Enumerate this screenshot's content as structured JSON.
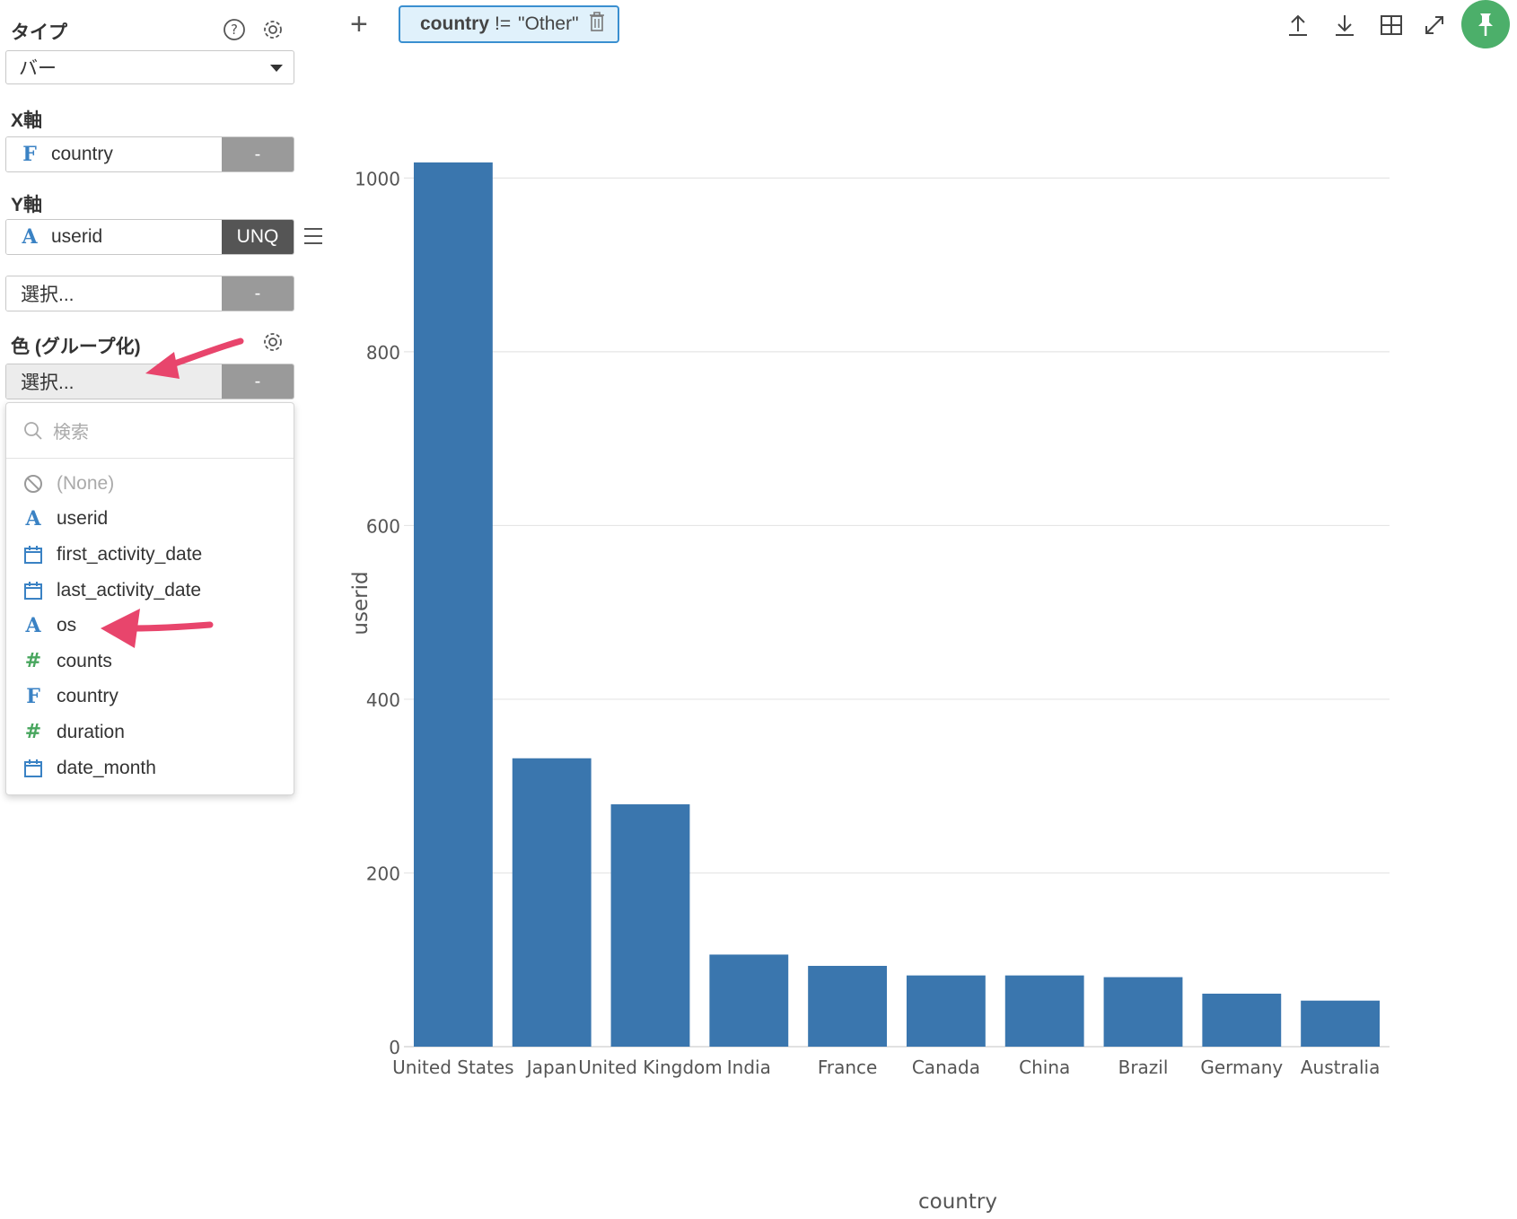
{
  "sidebar": {
    "type_label": "タイプ",
    "type_value": "バー",
    "x_axis_label": "X軸",
    "x_field": {
      "name": "country",
      "type_char": "F",
      "agg": "-"
    },
    "y_axis_label": "Y軸",
    "y_field": {
      "name": "userid",
      "type_char": "A",
      "agg": "UNQ"
    },
    "y_second": {
      "name": "選択...",
      "agg": "-"
    },
    "color_label": "色 (グループ化)",
    "color_field": {
      "name": "選択...",
      "agg": "-"
    },
    "dropdown": {
      "search_placeholder": "検索",
      "items": [
        {
          "label": "(None)",
          "icon": "none-icon"
        },
        {
          "label": "userid",
          "icon": "text-type-icon",
          "char": "A"
        },
        {
          "label": "first_activity_date",
          "icon": "calendar-icon"
        },
        {
          "label": "last_activity_date",
          "icon": "calendar-icon"
        },
        {
          "label": "os",
          "icon": "text-type-icon",
          "char": "A"
        },
        {
          "label": "counts",
          "icon": "number-type-icon",
          "char": "#"
        },
        {
          "label": "country",
          "icon": "factor-type-icon",
          "char": "F"
        },
        {
          "label": "duration",
          "icon": "number-type-icon",
          "char": "#"
        },
        {
          "label": "date_month",
          "icon": "calendar-icon"
        }
      ]
    }
  },
  "topbar": {
    "filter": {
      "field": "country",
      "op": "!=",
      "value": "\"Other\""
    }
  },
  "colors": {
    "bar": "#3a76ae",
    "accent": "#3a8fd0",
    "pin": "#4caf6a",
    "arrow": "#e8456c"
  },
  "chart_data": {
    "type": "bar",
    "categories": [
      "United States",
      "Japan",
      "United Kingdom",
      "India",
      "France",
      "Canada",
      "China",
      "Brazil",
      "Germany",
      "Australia"
    ],
    "values": [
      1018,
      332,
      279,
      106,
      93,
      82,
      82,
      80,
      61,
      53
    ],
    "xlabel": "country",
    "ylabel": "userid",
    "ylim": [
      0,
      1050
    ],
    "yticks": [
      0,
      200,
      400,
      600,
      800,
      1000
    ],
    "grid": true
  }
}
